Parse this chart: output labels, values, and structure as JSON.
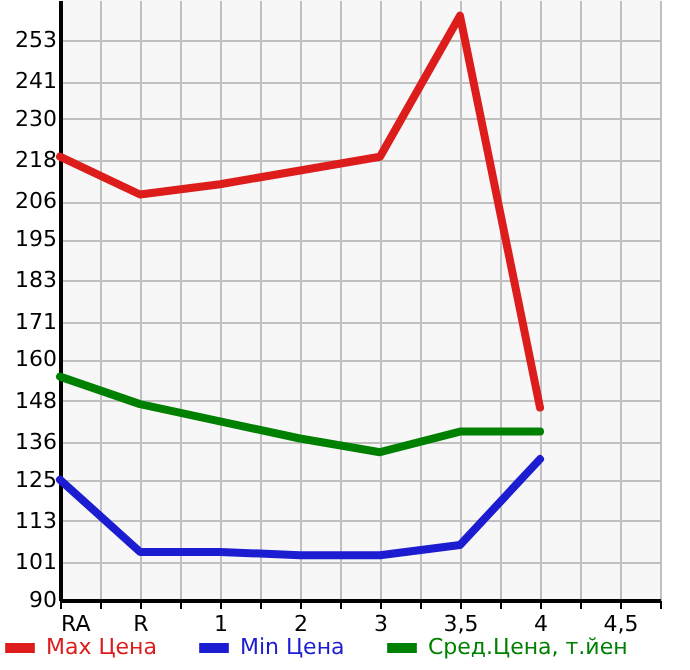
{
  "chart_data": {
    "type": "line",
    "categories": [
      "RA",
      "R",
      "1",
      "2",
      "3",
      "3,5",
      "4",
      "4,5"
    ],
    "series": [
      {
        "name": "Max Цена",
        "color": "#dd1c1c",
        "values": [
          219,
          208,
          211,
          215,
          219,
          260,
          146,
          null
        ]
      },
      {
        "name": "Min Цена",
        "color": "#1c1cd0",
        "values": [
          125,
          104,
          104,
          103,
          103,
          106,
          131,
          null
        ]
      },
      {
        "name": "Сред.Цена, т.йен",
        "color": "#008000",
        "values": [
          155,
          147,
          142,
          137,
          133,
          139,
          139,
          null
        ]
      }
    ],
    "ylim": [
      90,
      264.6
    ],
    "yticks": [
      90,
      101,
      113,
      125,
      136,
      148,
      160,
      171,
      183,
      195,
      206,
      218,
      230,
      241,
      253
    ],
    "grid": true,
    "legend": "bottom"
  }
}
